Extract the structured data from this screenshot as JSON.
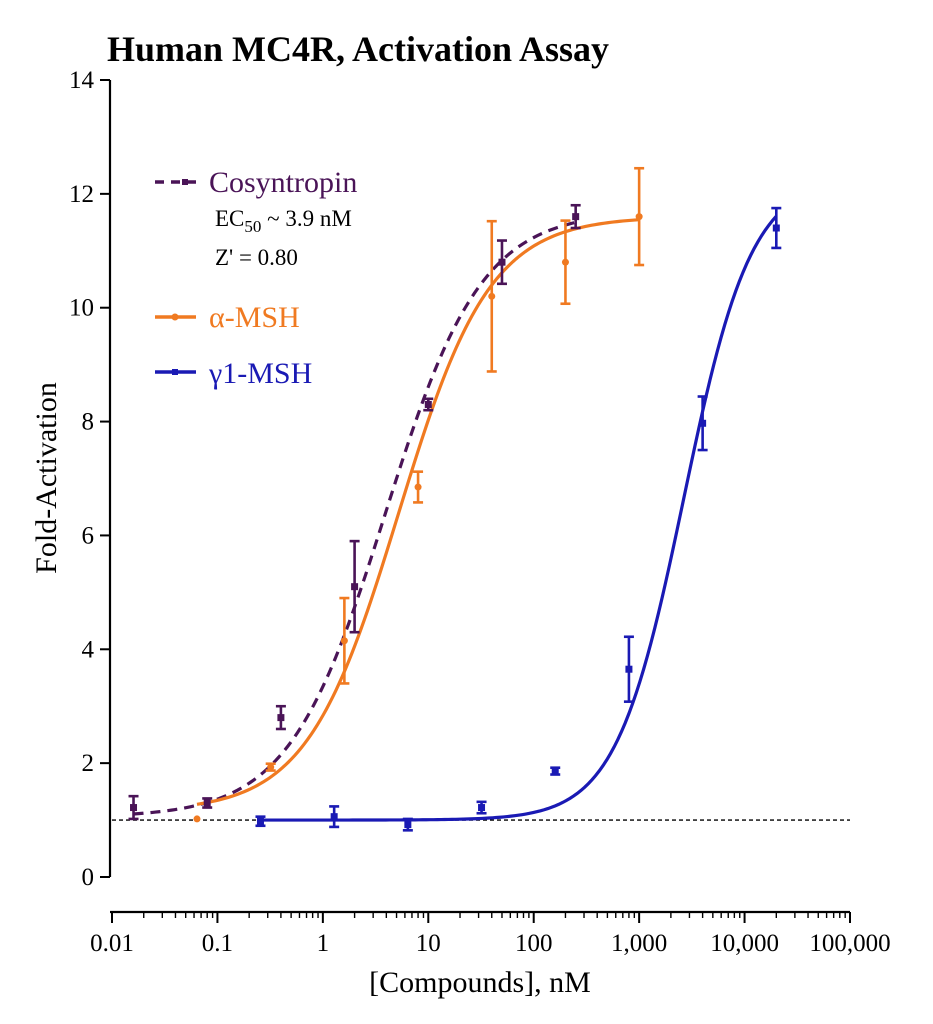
{
  "chart_data": {
    "type": "scatter",
    "title": "Human MC4R, Activation Assay",
    "xlabel": "[Compounds], nM",
    "ylabel": "Fold-Activation",
    "x_scale": "log",
    "xlim": [
      0.01,
      100000
    ],
    "ylim": [
      0,
      14
    ],
    "x_ticks": [
      0.01,
      0.1,
      1,
      10,
      100,
      1000,
      10000,
      100000
    ],
    "x_tick_labels": [
      "0.01",
      "0.1",
      "1",
      "10",
      "100",
      "1,000",
      "10,000",
      "100,000"
    ],
    "y_ticks": [
      0,
      2,
      4,
      6,
      8,
      10,
      12,
      14
    ],
    "y_tick_labels": [
      "0",
      "2",
      "4",
      "6",
      "8",
      "10",
      "12",
      "14"
    ],
    "baseline": 1,
    "legend_position": "top-left",
    "grid": false,
    "series": [
      {
        "name": "Cosyntropin",
        "color": "#4a1457",
        "line_style": "dashed",
        "marker": "bar",
        "points": [
          {
            "x": 0.016,
            "y": 1.22,
            "err": 0.2
          },
          {
            "x": 0.08,
            "y": 1.3,
            "err": 0.08
          },
          {
            "x": 0.4,
            "y": 2.8,
            "err": 0.2
          },
          {
            "x": 2.0,
            "y": 5.1,
            "err": 0.8
          },
          {
            "x": 10,
            "y": 8.3,
            "err": 0.1
          },
          {
            "x": 50,
            "y": 10.8,
            "err": 0.38
          },
          {
            "x": 250,
            "y": 11.6,
            "err": 0.2
          }
        ],
        "fit": {
          "bottom": 1.05,
          "top": 11.7,
          "ec50": 3.9,
          "hill": 0.95
        }
      },
      {
        "name": "α-MSH",
        "color": "#f07a21",
        "line_style": "solid",
        "marker": "dot",
        "points": [
          {
            "x": 0.064,
            "y": 1.02,
            "err": 0
          },
          {
            "x": 0.32,
            "y": 1.93,
            "err": 0.06
          },
          {
            "x": 1.6,
            "y": 4.15,
            "err": 0.75
          },
          {
            "x": 8,
            "y": 6.85,
            "err": 0.27
          },
          {
            "x": 40,
            "y": 10.2,
            "err": 1.32
          },
          {
            "x": 200,
            "y": 10.8,
            "err": 0.73
          },
          {
            "x": 1000,
            "y": 11.6,
            "err": 0.85
          }
        ],
        "fit": {
          "bottom": 1.15,
          "top": 11.6,
          "ec50": 5.2,
          "hill": 1.0
        }
      },
      {
        "name": "γ1-MSH",
        "color": "#1a1ab4",
        "line_style": "solid",
        "marker": "square",
        "points": [
          {
            "x": 0.256,
            "y": 0.98,
            "err": 0.08
          },
          {
            "x": 1.28,
            "y": 1.06,
            "err": 0.18
          },
          {
            "x": 6.4,
            "y": 0.92,
            "err": 0.1
          },
          {
            "x": 32,
            "y": 1.22,
            "err": 0.1
          },
          {
            "x": 160,
            "y": 1.86,
            "err": 0.06
          },
          {
            "x": 800,
            "y": 3.65,
            "err": 0.57
          },
          {
            "x": 4000,
            "y": 7.97,
            "err": 0.47
          },
          {
            "x": 20000,
            "y": 11.4,
            "err": 0.35
          }
        ],
        "fit": {
          "bottom": 1.0,
          "top": 12.3,
          "ec50": 2650,
          "hill": 1.35
        }
      }
    ],
    "annotations": {
      "ec50_prefix": "EC",
      "ec50_sub": "50",
      "ec50_suffix": " ~ 3.9 nM",
      "zprime": "Z' = 0.80"
    }
  }
}
